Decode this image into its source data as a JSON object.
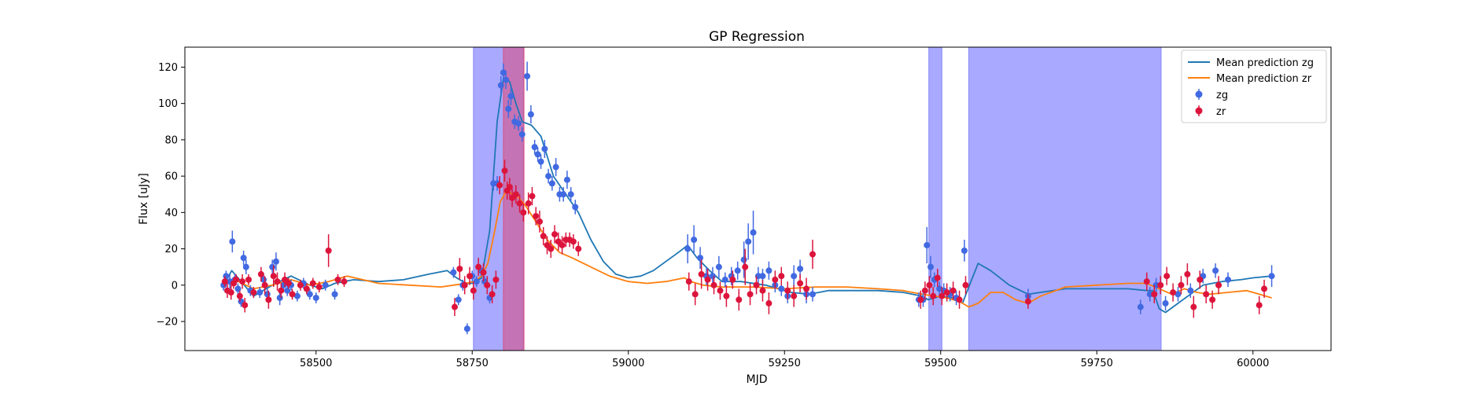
{
  "chart_data": {
    "type": "scatter",
    "title": "GP Regression",
    "xlabel": "MJD",
    "ylabel": "Flux [uJy]",
    "xlim": [
      58290,
      60125
    ],
    "ylim": [
      -36,
      131
    ],
    "xticks": [
      58500,
      58750,
      59000,
      59250,
      59500,
      59750,
      60000
    ],
    "yticks": [
      -20,
      0,
      20,
      40,
      60,
      80,
      100,
      120
    ],
    "grid": false,
    "legend_position": "top-right",
    "legend": [
      "Mean prediction zg",
      "Mean prediction zr",
      "zg",
      "zr"
    ],
    "colors": {
      "zg_line": "#1f77b4",
      "zr_line": "#ff7f0e",
      "zg_points": "#4169e1",
      "zr_points": "#dc143c",
      "span_blue": "#7b7bff",
      "span_red": "#e0406a"
    },
    "shaded_spans": [
      {
        "x0": 58752,
        "x1": 58832,
        "color": "blue"
      },
      {
        "x0": 59481,
        "x1": 59502,
        "color": "blue"
      },
      {
        "x0": 59545,
        "x1": 59853,
        "color": "blue"
      },
      {
        "x0": 58800,
        "x1": 58833,
        "color": "red"
      }
    ],
    "series": [
      {
        "name": "Mean prediction zg",
        "kind": "line",
        "x": [
          58350,
          58365,
          58380,
          58400,
          58430,
          58460,
          58490,
          58510,
          58530,
          58560,
          58600,
          58640,
          58680,
          58710,
          58725,
          58740,
          58752,
          58765,
          58778,
          58790,
          58800,
          58810,
          58820,
          58830,
          58845,
          58860,
          58880,
          58900,
          58920,
          58940,
          58960,
          58980,
          59000,
          59020,
          59040,
          59060,
          59080,
          59095,
          59110,
          59130,
          59150,
          59180,
          59220,
          59260,
          59290,
          59320,
          59360,
          59400,
          59440,
          59470,
          59480,
          59500,
          59520,
          59535,
          59545,
          59560,
          59580,
          59610,
          59640,
          59660,
          59700,
          59750,
          59800,
          59830,
          59840,
          59850,
          59860,
          59880,
          59900,
          59920,
          59950,
          59980,
          60000,
          60030
        ],
        "y": [
          -1,
          8,
          2,
          -6,
          0,
          5,
          0,
          -2,
          1,
          3,
          2,
          3,
          6,
          8,
          4,
          1,
          1,
          4,
          30,
          90,
          114,
          112,
          100,
          90,
          88,
          82,
          60,
          50,
          40,
          25,
          13,
          6,
          4,
          5,
          8,
          13,
          18,
          22,
          15,
          8,
          2,
          2,
          0,
          -4,
          -5,
          -3,
          -3,
          -3,
          -4,
          -6,
          -8,
          -6,
          -7,
          -10,
          -1,
          12,
          8,
          0,
          -5,
          -4,
          -2,
          -2,
          -2,
          -3,
          -3,
          -13,
          -15,
          -10,
          -5,
          0,
          2,
          3,
          4,
          5
        ]
      },
      {
        "name": "Mean prediction zr",
        "kind": "line",
        "x": [
          58350,
          58370,
          58400,
          58430,
          58460,
          58490,
          58520,
          58550,
          58600,
          58650,
          58700,
          58720,
          58740,
          58752,
          58765,
          58775,
          58785,
          58795,
          58805,
          58815,
          58825,
          58835,
          58850,
          58870,
          58890,
          58910,
          58940,
          58970,
          59000,
          59030,
          59060,
          59090,
          59100,
          59120,
          59150,
          59200,
          59250,
          59300,
          59350,
          59400,
          59440,
          59470,
          59490,
          59510,
          59530,
          59545,
          59560,
          59580,
          59600,
          59620,
          59640,
          59660,
          59700,
          59750,
          59800,
          59830,
          59850,
          59870,
          59890,
          59910,
          59930,
          59960,
          59990,
          60010,
          60030
        ],
        "y": [
          0,
          3,
          -2,
          0,
          3,
          0,
          2,
          5,
          1,
          0,
          -1,
          0,
          1,
          2,
          5,
          12,
          28,
          46,
          52,
          50,
          48,
          44,
          36,
          25,
          18,
          15,
          10,
          5,
          2,
          1,
          2,
          4,
          2,
          0,
          -1,
          -1,
          -2,
          -1,
          -1,
          -2,
          -3,
          -5,
          -6,
          -7,
          -9,
          -12,
          -10,
          -4,
          -4,
          -8,
          -10,
          -6,
          -1,
          0,
          1,
          1,
          -2,
          -5,
          -2,
          -4,
          -5,
          -4,
          -3,
          -5,
          -7
        ]
      },
      {
        "name": "zg",
        "kind": "points",
        "x": [
          58352,
          58356,
          58362,
          58366,
          58370,
          58375,
          58380,
          58384,
          58388,
          58395,
          58410,
          58416,
          58422,
          58430,
          58436,
          58442,
          58448,
          58454,
          58460,
          58470,
          58480,
          58490,
          58500,
          58515,
          58530,
          58720,
          58728,
          58735,
          58742,
          58750,
          58757,
          58764,
          58770,
          58778,
          58784,
          58790,
          58796,
          58800,
          58804,
          58808,
          58812,
          58818,
          58824,
          58830,
          58838,
          58844,
          58850,
          58855,
          58860,
          58866,
          58872,
          58878,
          58884,
          58890,
          58896,
          58902,
          58908,
          58915,
          59095,
          59105,
          59115,
          59125,
          59135,
          59145,
          59155,
          59165,
          59175,
          59185,
          59192,
          59200,
          59208,
          59215,
          59225,
          59235,
          59245,
          59255,
          59265,
          59275,
          59285,
          59295,
          59465,
          59472,
          59478,
          59484,
          59490,
          59498,
          59505,
          59515,
          59525,
          59538,
          59640,
          59820,
          59835,
          59845,
          59860,
          59880,
          59900,
          59920,
          59940,
          59960,
          60030
        ],
        "y": [
          0,
          5,
          2,
          24,
          3,
          -2,
          -9,
          15,
          10,
          -3,
          -4,
          3,
          -5,
          10,
          13,
          -7,
          0,
          -3,
          0,
          -6,
          1,
          -5,
          -7,
          0,
          -5,
          7,
          -8,
          0,
          -24,
          5,
          2,
          8,
          2,
          -7,
          56,
          56,
          110,
          117,
          113,
          97,
          104,
          90,
          89,
          83,
          115,
          94,
          76,
          72,
          68,
          75,
          60,
          56,
          65,
          50,
          50,
          58,
          50,
          43,
          20,
          25,
          15,
          5,
          5,
          10,
          3,
          5,
          8,
          14,
          24,
          29,
          5,
          5,
          8,
          0,
          -2,
          -6,
          5,
          9,
          -5,
          -5,
          -8,
          -8,
          22,
          10,
          3,
          -2,
          -3,
          -5,
          -7,
          19,
          -6,
          -12,
          -5,
          0,
          -10,
          -5,
          -3,
          5,
          8,
          3,
          5
        ],
        "yerr": [
          3,
          3,
          4,
          6,
          3,
          3,
          3,
          4,
          4,
          3,
          3,
          3,
          3,
          4,
          5,
          4,
          3,
          3,
          3,
          3,
          3,
          3,
          3,
          3,
          3,
          3,
          3,
          3,
          3,
          3,
          3,
          3,
          3,
          3,
          4,
          4,
          5,
          5,
          5,
          5,
          5,
          4,
          4,
          4,
          8,
          5,
          4,
          4,
          4,
          5,
          4,
          4,
          5,
          4,
          4,
          5,
          4,
          4,
          8,
          8,
          6,
          5,
          5,
          6,
          4,
          5,
          5,
          10,
          10,
          12,
          5,
          4,
          5,
          4,
          4,
          4,
          6,
          5,
          5,
          4,
          4,
          4,
          10,
          6,
          4,
          4,
          4,
          4,
          4,
          6,
          4,
          4,
          4,
          4,
          4,
          4,
          4,
          4,
          4,
          4,
          6
        ]
      },
      {
        "name": "zr",
        "kind": "points",
        "x": [
          58354,
          58358,
          58364,
          58368,
          58372,
          58378,
          58382,
          58386,
          58392,
          58400,
          58412,
          58418,
          58424,
          58432,
          58438,
          58444,
          58450,
          58456,
          58462,
          58475,
          58485,
          58495,
          58505,
          58520,
          58535,
          58545,
          58722,
          58730,
          58738,
          58746,
          58752,
          58760,
          58768,
          58774,
          58782,
          58788,
          58794,
          58802,
          58806,
          58810,
          58814,
          58820,
          58826,
          58832,
          58840,
          58846,
          58852,
          58858,
          58864,
          58870,
          58876,
          58882,
          58888,
          58894,
          58900,
          58906,
          58912,
          58920,
          59097,
          59107,
          59117,
          59127,
          59137,
          59147,
          59157,
          59167,
          59177,
          59187,
          59195,
          59205,
          59215,
          59225,
          59235,
          59245,
          59255,
          59265,
          59275,
          59285,
          59295,
          59468,
          59475,
          59482,
          59488,
          59495,
          59502,
          59510,
          59520,
          59530,
          59540,
          59640,
          59830,
          59842,
          59852,
          59862,
          59872,
          59885,
          59895,
          59905,
          59915,
          59925,
          59935,
          59945,
          60010,
          60018
        ],
        "y": [
          2,
          -3,
          -4,
          1,
          3,
          -6,
          2,
          -11,
          3,
          -4,
          6,
          0,
          -8,
          5,
          2,
          -3,
          3,
          1,
          -5,
          0,
          -2,
          1,
          -1,
          19,
          3,
          2,
          -12,
          9,
          0,
          5,
          -3,
          10,
          7,
          0,
          -5,
          3,
          55,
          63,
          52,
          54,
          48,
          50,
          45,
          40,
          45,
          49,
          38,
          35,
          27,
          22,
          20,
          28,
          24,
          22,
          25,
          25,
          24,
          20,
          2,
          -5,
          6,
          3,
          0,
          -3,
          -6,
          3,
          -8,
          10,
          -5,
          0,
          -3,
          -10,
          3,
          5,
          -3,
          -6,
          1,
          -2,
          17,
          -8,
          -3,
          0,
          -6,
          4,
          -6,
          -4,
          -3,
          -8,
          0,
          -9,
          2,
          -5,
          0,
          5,
          -4,
          0,
          6,
          -12,
          3,
          -5,
          -8,
          0,
          -11,
          -2
        ],
        "yerr": [
          3,
          4,
          4,
          3,
          3,
          3,
          4,
          4,
          3,
          3,
          4,
          5,
          5,
          6,
          5,
          4,
          4,
          3,
          3,
          3,
          3,
          3,
          3,
          9,
          3,
          3,
          5,
          6,
          5,
          5,
          5,
          5,
          5,
          5,
          5,
          5,
          5,
          6,
          5,
          5,
          5,
          5,
          5,
          5,
          6,
          5,
          5,
          6,
          5,
          5,
          5,
          5,
          5,
          5,
          4,
          4,
          4,
          4,
          5,
          6,
          8,
          6,
          5,
          5,
          6,
          5,
          6,
          10,
          6,
          5,
          6,
          6,
          5,
          5,
          5,
          6,
          5,
          6,
          8,
          5,
          5,
          5,
          5,
          5,
          5,
          5,
          5,
          5,
          5,
          4,
          5,
          5,
          5,
          5,
          5,
          5,
          6,
          6,
          5,
          5,
          5,
          5,
          5,
          5
        ]
      }
    ]
  }
}
